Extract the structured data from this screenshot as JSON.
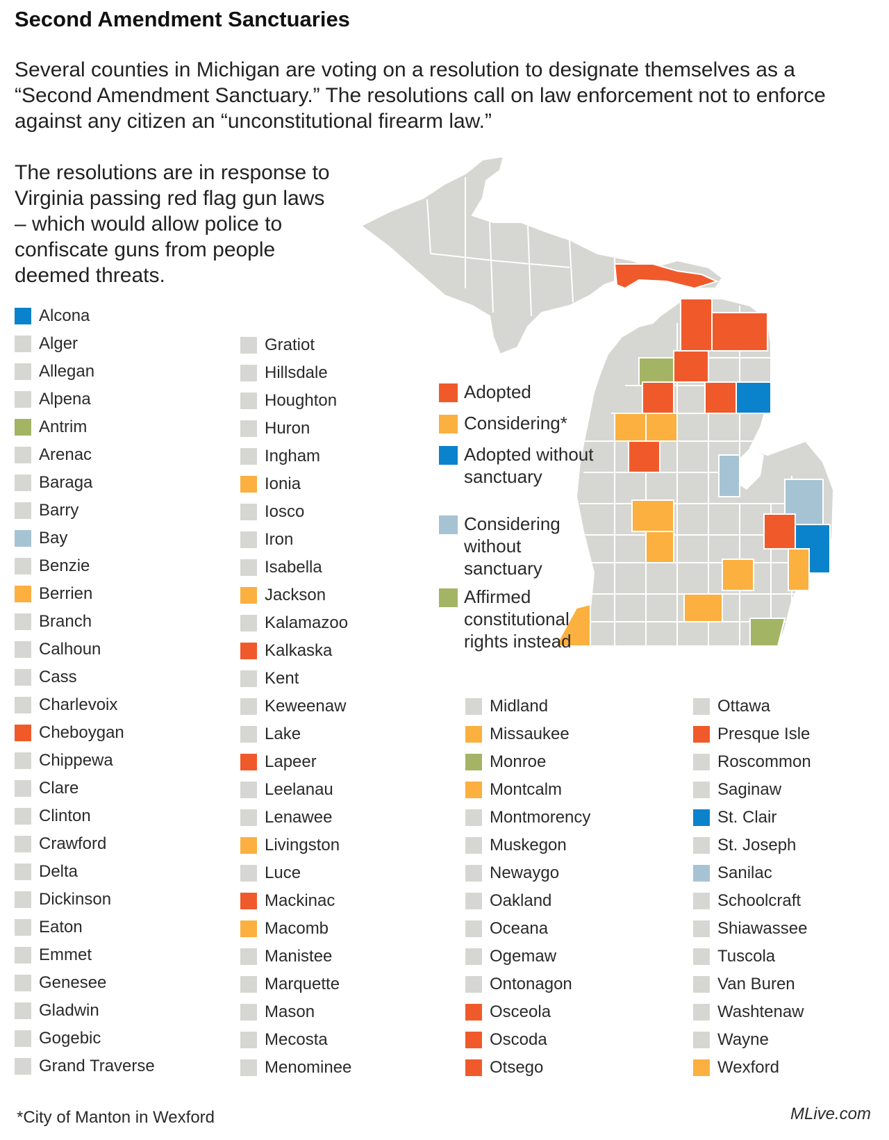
{
  "title": "Second Amendment Sanctuaries",
  "intro": "Several counties in Michigan are voting on a resolution to designate themselves as a “Second Amendment Sanctuary.” The resolutions call on law enforcement not to enforce against any citizen an “unconstitutional firearm law.”",
  "context": "The resolutions are in response to Virginia passing red flag gun laws – which would allow police to confiscate guns from people deemed threats.",
  "colors": {
    "adopted": "#f05a2b",
    "considering": "#fbb040",
    "adopted_without": "#0b83cc",
    "considering_without": "#a6c3d4",
    "affirmed": "#a4b465",
    "none": "#d6d6d2"
  },
  "legend": [
    {
      "status": "adopted",
      "label": "Adopted"
    },
    {
      "status": "considering",
      "label": "Considering*"
    },
    {
      "status": "adopted_without",
      "label": "Adopted without sanctuary"
    },
    {
      "status": "considering_without",
      "label": "Considering without sanctuary"
    },
    {
      "status": "affirmed",
      "label": "Affirmed constitutional rights instead"
    }
  ],
  "counties": [
    {
      "name": "Alcona",
      "status": "adopted_without"
    },
    {
      "name": "Alger",
      "status": "none"
    },
    {
      "name": "Allegan",
      "status": "none"
    },
    {
      "name": "Alpena",
      "status": "none"
    },
    {
      "name": "Antrim",
      "status": "affirmed"
    },
    {
      "name": "Arenac",
      "status": "none"
    },
    {
      "name": "Baraga",
      "status": "none"
    },
    {
      "name": "Barry",
      "status": "none"
    },
    {
      "name": "Bay",
      "status": "considering_without"
    },
    {
      "name": "Benzie",
      "status": "none"
    },
    {
      "name": "Berrien",
      "status": "considering"
    },
    {
      "name": "Branch",
      "status": "none"
    },
    {
      "name": "Calhoun",
      "status": "none"
    },
    {
      "name": "Cass",
      "status": "none"
    },
    {
      "name": "Charlevoix",
      "status": "none"
    },
    {
      "name": "Cheboygan",
      "status": "adopted"
    },
    {
      "name": "Chippewa",
      "status": "none"
    },
    {
      "name": "Clare",
      "status": "none"
    },
    {
      "name": "Clinton",
      "status": "none"
    },
    {
      "name": "Crawford",
      "status": "none"
    },
    {
      "name": "Delta",
      "status": "none"
    },
    {
      "name": "Dickinson",
      "status": "none"
    },
    {
      "name": "Eaton",
      "status": "none"
    },
    {
      "name": "Emmet",
      "status": "none"
    },
    {
      "name": "Genesee",
      "status": "none"
    },
    {
      "name": "Gladwin",
      "status": "none"
    },
    {
      "name": "Gogebic",
      "status": "none"
    },
    {
      "name": "Grand Traverse",
      "status": "none"
    },
    {
      "name": "Gratiot",
      "status": "none"
    },
    {
      "name": "Hillsdale",
      "status": "none"
    },
    {
      "name": "Houghton",
      "status": "none"
    },
    {
      "name": "Huron",
      "status": "none"
    },
    {
      "name": "Ingham",
      "status": "none"
    },
    {
      "name": "Ionia",
      "status": "considering"
    },
    {
      "name": "Iosco",
      "status": "none"
    },
    {
      "name": "Iron",
      "status": "none"
    },
    {
      "name": "Isabella",
      "status": "none"
    },
    {
      "name": "Jackson",
      "status": "considering"
    },
    {
      "name": "Kalamazoo",
      "status": "none"
    },
    {
      "name": "Kalkaska",
      "status": "adopted"
    },
    {
      "name": "Kent",
      "status": "none"
    },
    {
      "name": "Keweenaw",
      "status": "none"
    },
    {
      "name": "Lake",
      "status": "none"
    },
    {
      "name": "Lapeer",
      "status": "adopted"
    },
    {
      "name": "Leelanau",
      "status": "none"
    },
    {
      "name": "Lenawee",
      "status": "none"
    },
    {
      "name": "Livingston",
      "status": "considering"
    },
    {
      "name": "Luce",
      "status": "none"
    },
    {
      "name": "Mackinac",
      "status": "adopted"
    },
    {
      "name": "Macomb",
      "status": "considering"
    },
    {
      "name": "Manistee",
      "status": "none"
    },
    {
      "name": "Marquette",
      "status": "none"
    },
    {
      "name": "Mason",
      "status": "none"
    },
    {
      "name": "Mecosta",
      "status": "none"
    },
    {
      "name": "Menominee",
      "status": "none"
    },
    {
      "name": "Midland",
      "status": "none"
    },
    {
      "name": "Missaukee",
      "status": "considering"
    },
    {
      "name": "Monroe",
      "status": "affirmed"
    },
    {
      "name": "Montcalm",
      "status": "considering"
    },
    {
      "name": "Montmorency",
      "status": "none"
    },
    {
      "name": "Muskegon",
      "status": "none"
    },
    {
      "name": "Newaygo",
      "status": "none"
    },
    {
      "name": "Oakland",
      "status": "none"
    },
    {
      "name": "Oceana",
      "status": "none"
    },
    {
      "name": "Ogemaw",
      "status": "none"
    },
    {
      "name": "Ontonagon",
      "status": "none"
    },
    {
      "name": "Osceola",
      "status": "adopted"
    },
    {
      "name": "Oscoda",
      "status": "adopted"
    },
    {
      "name": "Otsego",
      "status": "adopted"
    },
    {
      "name": "Ottawa",
      "status": "none"
    },
    {
      "name": "Presque Isle",
      "status": "adopted"
    },
    {
      "name": "Roscommon",
      "status": "none"
    },
    {
      "name": "Saginaw",
      "status": "none"
    },
    {
      "name": "St. Clair",
      "status": "adopted_without"
    },
    {
      "name": "St. Joseph",
      "status": "none"
    },
    {
      "name": "Sanilac",
      "status": "considering_without"
    },
    {
      "name": "Schoolcraft",
      "status": "none"
    },
    {
      "name": "Shiawassee",
      "status": "none"
    },
    {
      "name": "Tuscola",
      "status": "none"
    },
    {
      "name": "Van Buren",
      "status": "none"
    },
    {
      "name": "Washtenaw",
      "status": "none"
    },
    {
      "name": "Wayne",
      "status": "none"
    },
    {
      "name": "Wexford",
      "status": "considering"
    }
  ],
  "footnote": "*City of Manton in Wexford",
  "credit": "MLive.com"
}
